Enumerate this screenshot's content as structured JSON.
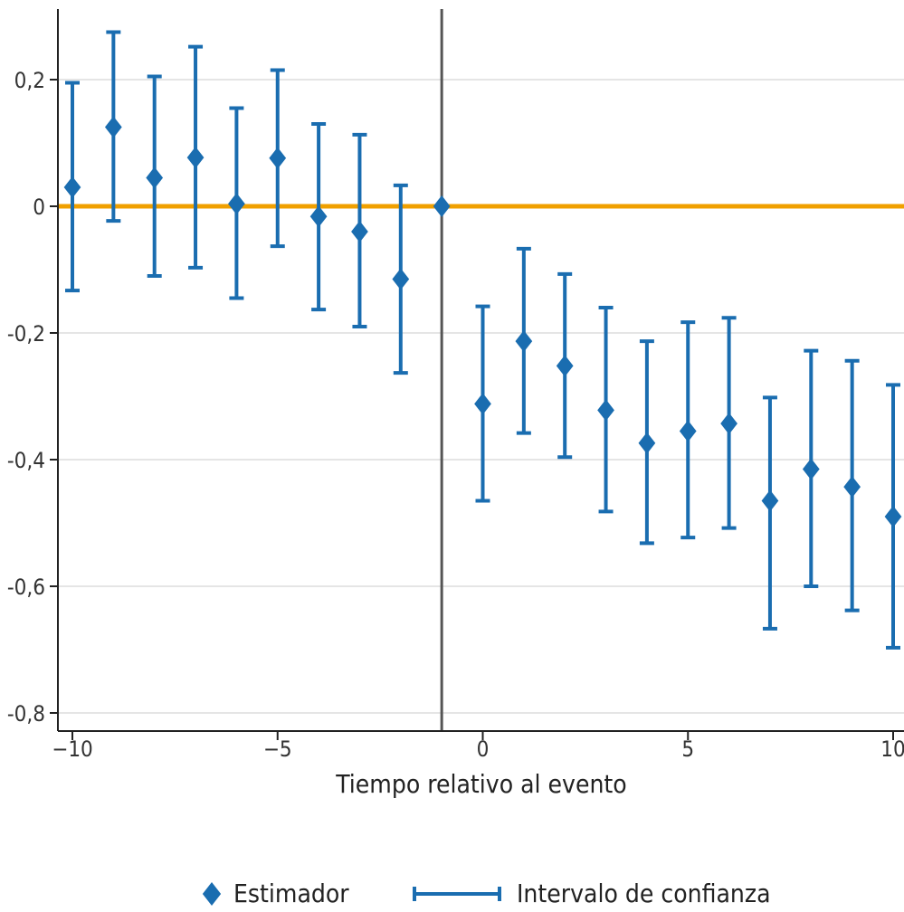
{
  "chart_data": {
    "type": "scatter",
    "title": "",
    "xlabel": "Tiempo relativo al evento",
    "ylabel": "",
    "xlim": [
      -10.3,
      10
    ],
    "ylim": [
      -0.84,
      0.31
    ],
    "x_ticks": [
      -10,
      -5,
      0,
      5,
      10
    ],
    "x_tick_labels": [
      "−10",
      "−5",
      "0",
      "5",
      "10"
    ],
    "y_ticks": [
      0.2,
      0,
      -0.2,
      -0.4,
      -0.6,
      -0.8
    ],
    "y_tick_labels": [
      "0,2",
      "0",
      "-0,2",
      "-0,4",
      "-0,6",
      "-0,8"
    ],
    "reference_line_y": 0,
    "event_line_x": -1,
    "grid": "horizontal",
    "legend_position": "bottom",
    "colors": {
      "series": "#1a6db0",
      "zero_line": "#f0a000",
      "event_line": "#555555",
      "grid": "#e5e5e5",
      "axis": "#222222"
    },
    "series": [
      {
        "name": "Estimador",
        "x": [
          -10,
          -9,
          -8,
          -7,
          -6,
          -5,
          -4,
          -3,
          -2,
          -1,
          0,
          1,
          2,
          3,
          4,
          5,
          6,
          7,
          8,
          9,
          10
        ],
        "y": [
          0.03,
          0.125,
          0.045,
          0.077,
          0.004,
          0.076,
          -0.016,
          -0.04,
          -0.115,
          0,
          -0.312,
          -0.213,
          -0.252,
          -0.322,
          -0.374,
          -0.355,
          -0.343,
          -0.465,
          -0.415,
          -0.443,
          -0.49
        ],
        "lower": [
          -0.133,
          -0.023,
          -0.11,
          -0.097,
          -0.145,
          -0.063,
          -0.163,
          -0.19,
          -0.263,
          null,
          -0.465,
          -0.358,
          -0.396,
          -0.482,
          -0.532,
          -0.523,
          -0.508,
          -0.667,
          -0.6,
          -0.638,
          -0.697
        ],
        "upper": [
          0.195,
          0.275,
          0.205,
          0.252,
          0.155,
          0.215,
          0.13,
          0.113,
          0.033,
          null,
          -0.158,
          -0.067,
          -0.107,
          -0.16,
          -0.213,
          -0.183,
          -0.176,
          -0.302,
          -0.228,
          -0.244,
          -0.282
        ]
      }
    ],
    "legend": {
      "estimator_label": "Estimador",
      "ci_label": "Intervalo de confianza"
    }
  }
}
